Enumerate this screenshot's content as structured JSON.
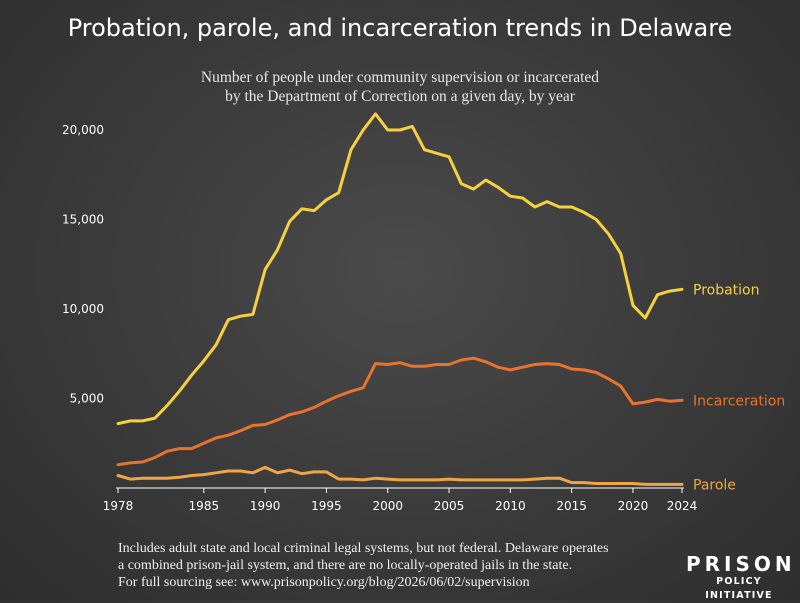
{
  "title": "Probation, parole, and incarceration trends in Delaware",
  "subtitle_lines": [
    "Number of people under community supervision or incarcerated",
    "by the Department of Correction on a given day, by year"
  ],
  "footnote_lines": [
    "Includes adult state and local criminal legal systems, but not federal. Delaware operates",
    "a combined prison-jail system, and there are no locally-operated jails in the state.",
    "For full sourcing see: www.prisonpolicy.org/blog/2026/06/02/supervision"
  ],
  "logo": {
    "line1": "PRISON",
    "line2": "POLICY INITIATIVE"
  },
  "chart_data": {
    "type": "line",
    "xlim": [
      1978,
      2024
    ],
    "ylim": [
      0,
      20000
    ],
    "grid": false,
    "legend": "inline labels at right end of each line",
    "x_ticks": [
      1978,
      1985,
      1990,
      1995,
      2000,
      2005,
      2010,
      2015,
      2020,
      2024
    ],
    "y_ticks": [
      {
        "value": 5000,
        "label": "5,000"
      },
      {
        "value": 10000,
        "label": "10,000"
      },
      {
        "value": 15000,
        "label": "15,000"
      },
      {
        "value": 20000,
        "label": "20,000"
      }
    ],
    "x": [
      1978,
      1979,
      1980,
      1981,
      1982,
      1983,
      1984,
      1985,
      1986,
      1987,
      1988,
      1989,
      1990,
      1991,
      1992,
      1993,
      1994,
      1995,
      1996,
      1997,
      1998,
      1999,
      2000,
      2001,
      2002,
      2003,
      2004,
      2005,
      2006,
      2007,
      2008,
      2009,
      2010,
      2011,
      2012,
      2013,
      2014,
      2015,
      2016,
      2017,
      2018,
      2019,
      2020,
      2021,
      2022,
      2023,
      2024
    ],
    "series": [
      {
        "name": "Probation",
        "color": "#f5d13f",
        "values": [
          3600,
          3750,
          3750,
          3900,
          4600,
          5400,
          6300,
          7100,
          8000,
          9400,
          9600,
          9700,
          12200,
          13300,
          14900,
          15600,
          15500,
          16100,
          16500,
          18900,
          20000,
          20900,
          20000,
          20000,
          20200,
          18900,
          18700,
          18500,
          17000,
          16700,
          17200,
          16800,
          16300,
          16200,
          15700,
          16000,
          15700,
          15700,
          15400,
          15000,
          14200,
          13100,
          10200,
          9500,
          10800,
          11000,
          11100
        ]
      },
      {
        "name": "Incarceration",
        "color": "#e8732e",
        "values": [
          1300,
          1400,
          1450,
          1700,
          2050,
          2200,
          2200,
          2500,
          2800,
          2950,
          3200,
          3500,
          3550,
          3800,
          4100,
          4250,
          4500,
          4850,
          5150,
          5400,
          5600,
          6950,
          6900,
          7000,
          6800,
          6800,
          6900,
          6900,
          7150,
          7250,
          7050,
          6750,
          6600,
          6750,
          6900,
          6950,
          6900,
          6650,
          6600,
          6450,
          6100,
          5700,
          4700,
          4800,
          4950,
          4850,
          4900
        ]
      },
      {
        "name": "Parole",
        "color": "#f0a545",
        "values": [
          700,
          500,
          550,
          550,
          550,
          600,
          700,
          750,
          850,
          950,
          950,
          850,
          1150,
          850,
          1000,
          800,
          900,
          900,
          500,
          500,
          450,
          550,
          500,
          450,
          450,
          450,
          450,
          500,
          450,
          450,
          450,
          450,
          450,
          450,
          500,
          550,
          550,
          300,
          300,
          250,
          250,
          250,
          250,
          200,
          200,
          200,
          200
        ]
      }
    ]
  }
}
